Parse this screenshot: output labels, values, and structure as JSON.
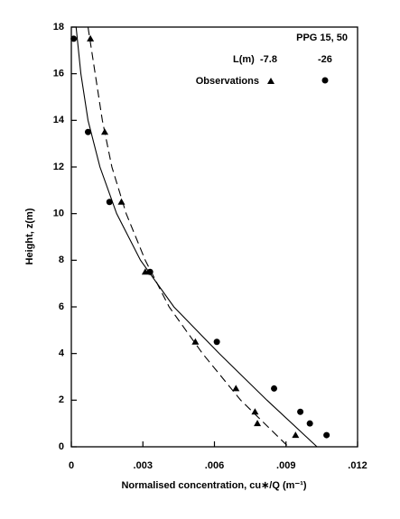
{
  "chart_data": {
    "type": "scatter",
    "x_label": "Normalised concentration, cu∗/Q (m⁻¹)",
    "y_label": "Height, z(m)",
    "legend_title": "PPG 15, 50",
    "legend_header": "L(m)",
    "legend_row": "Observations",
    "xlim": [
      0,
      0.012
    ],
    "xticks": [
      0,
      {
        "value": 0.003,
        "label": ".003"
      },
      {
        "value": 0.006,
        "label": ".006"
      },
      {
        "value": 0.009,
        "label": ".009"
      },
      {
        "value": 0.012,
        "label": ".012"
      }
    ],
    "ylim": [
      0,
      18
    ],
    "yticks": [
      0,
      2,
      4,
      6,
      8,
      10,
      12,
      14,
      16,
      18
    ],
    "color": "#000000",
    "series": [
      {
        "name": "-7.8",
        "marker": "triangle",
        "line": "dashed",
        "x": [
          0.0008,
          0.0014,
          0.0021,
          0.0031,
          0.0052,
          0.0069,
          0.0077,
          0.0078,
          0.0094
        ],
        "values": [
          17.5,
          13.5,
          10.5,
          7.5,
          4.5,
          2.5,
          1.5,
          1.0,
          0.5
        ],
        "fit_x": [
          0.0007,
          0.001,
          0.0013,
          0.0017,
          0.0023,
          0.0031,
          0.0041,
          0.0055,
          0.0071,
          0.0091
        ],
        "fit_y": [
          18,
          16,
          14,
          12,
          10,
          8,
          6,
          4,
          2,
          0
        ]
      },
      {
        "name": "-26",
        "marker": "circle",
        "line": "solid",
        "x": [
          0.0001,
          0.0007,
          0.0016,
          0.0033,
          0.0061,
          0.0085,
          0.0096,
          0.01,
          0.0107
        ],
        "values": [
          17.5,
          13.5,
          10.5,
          7.5,
          4.5,
          2.5,
          1.5,
          1.0,
          0.5
        ],
        "fit_x": [
          0.0002,
          0.0004,
          0.0007,
          0.0012,
          0.0019,
          0.0029,
          0.0043,
          0.0062,
          0.0082,
          0.0103
        ],
        "fit_y": [
          18,
          16,
          14,
          12,
          10,
          8,
          6,
          4,
          2,
          0
        ]
      }
    ]
  }
}
